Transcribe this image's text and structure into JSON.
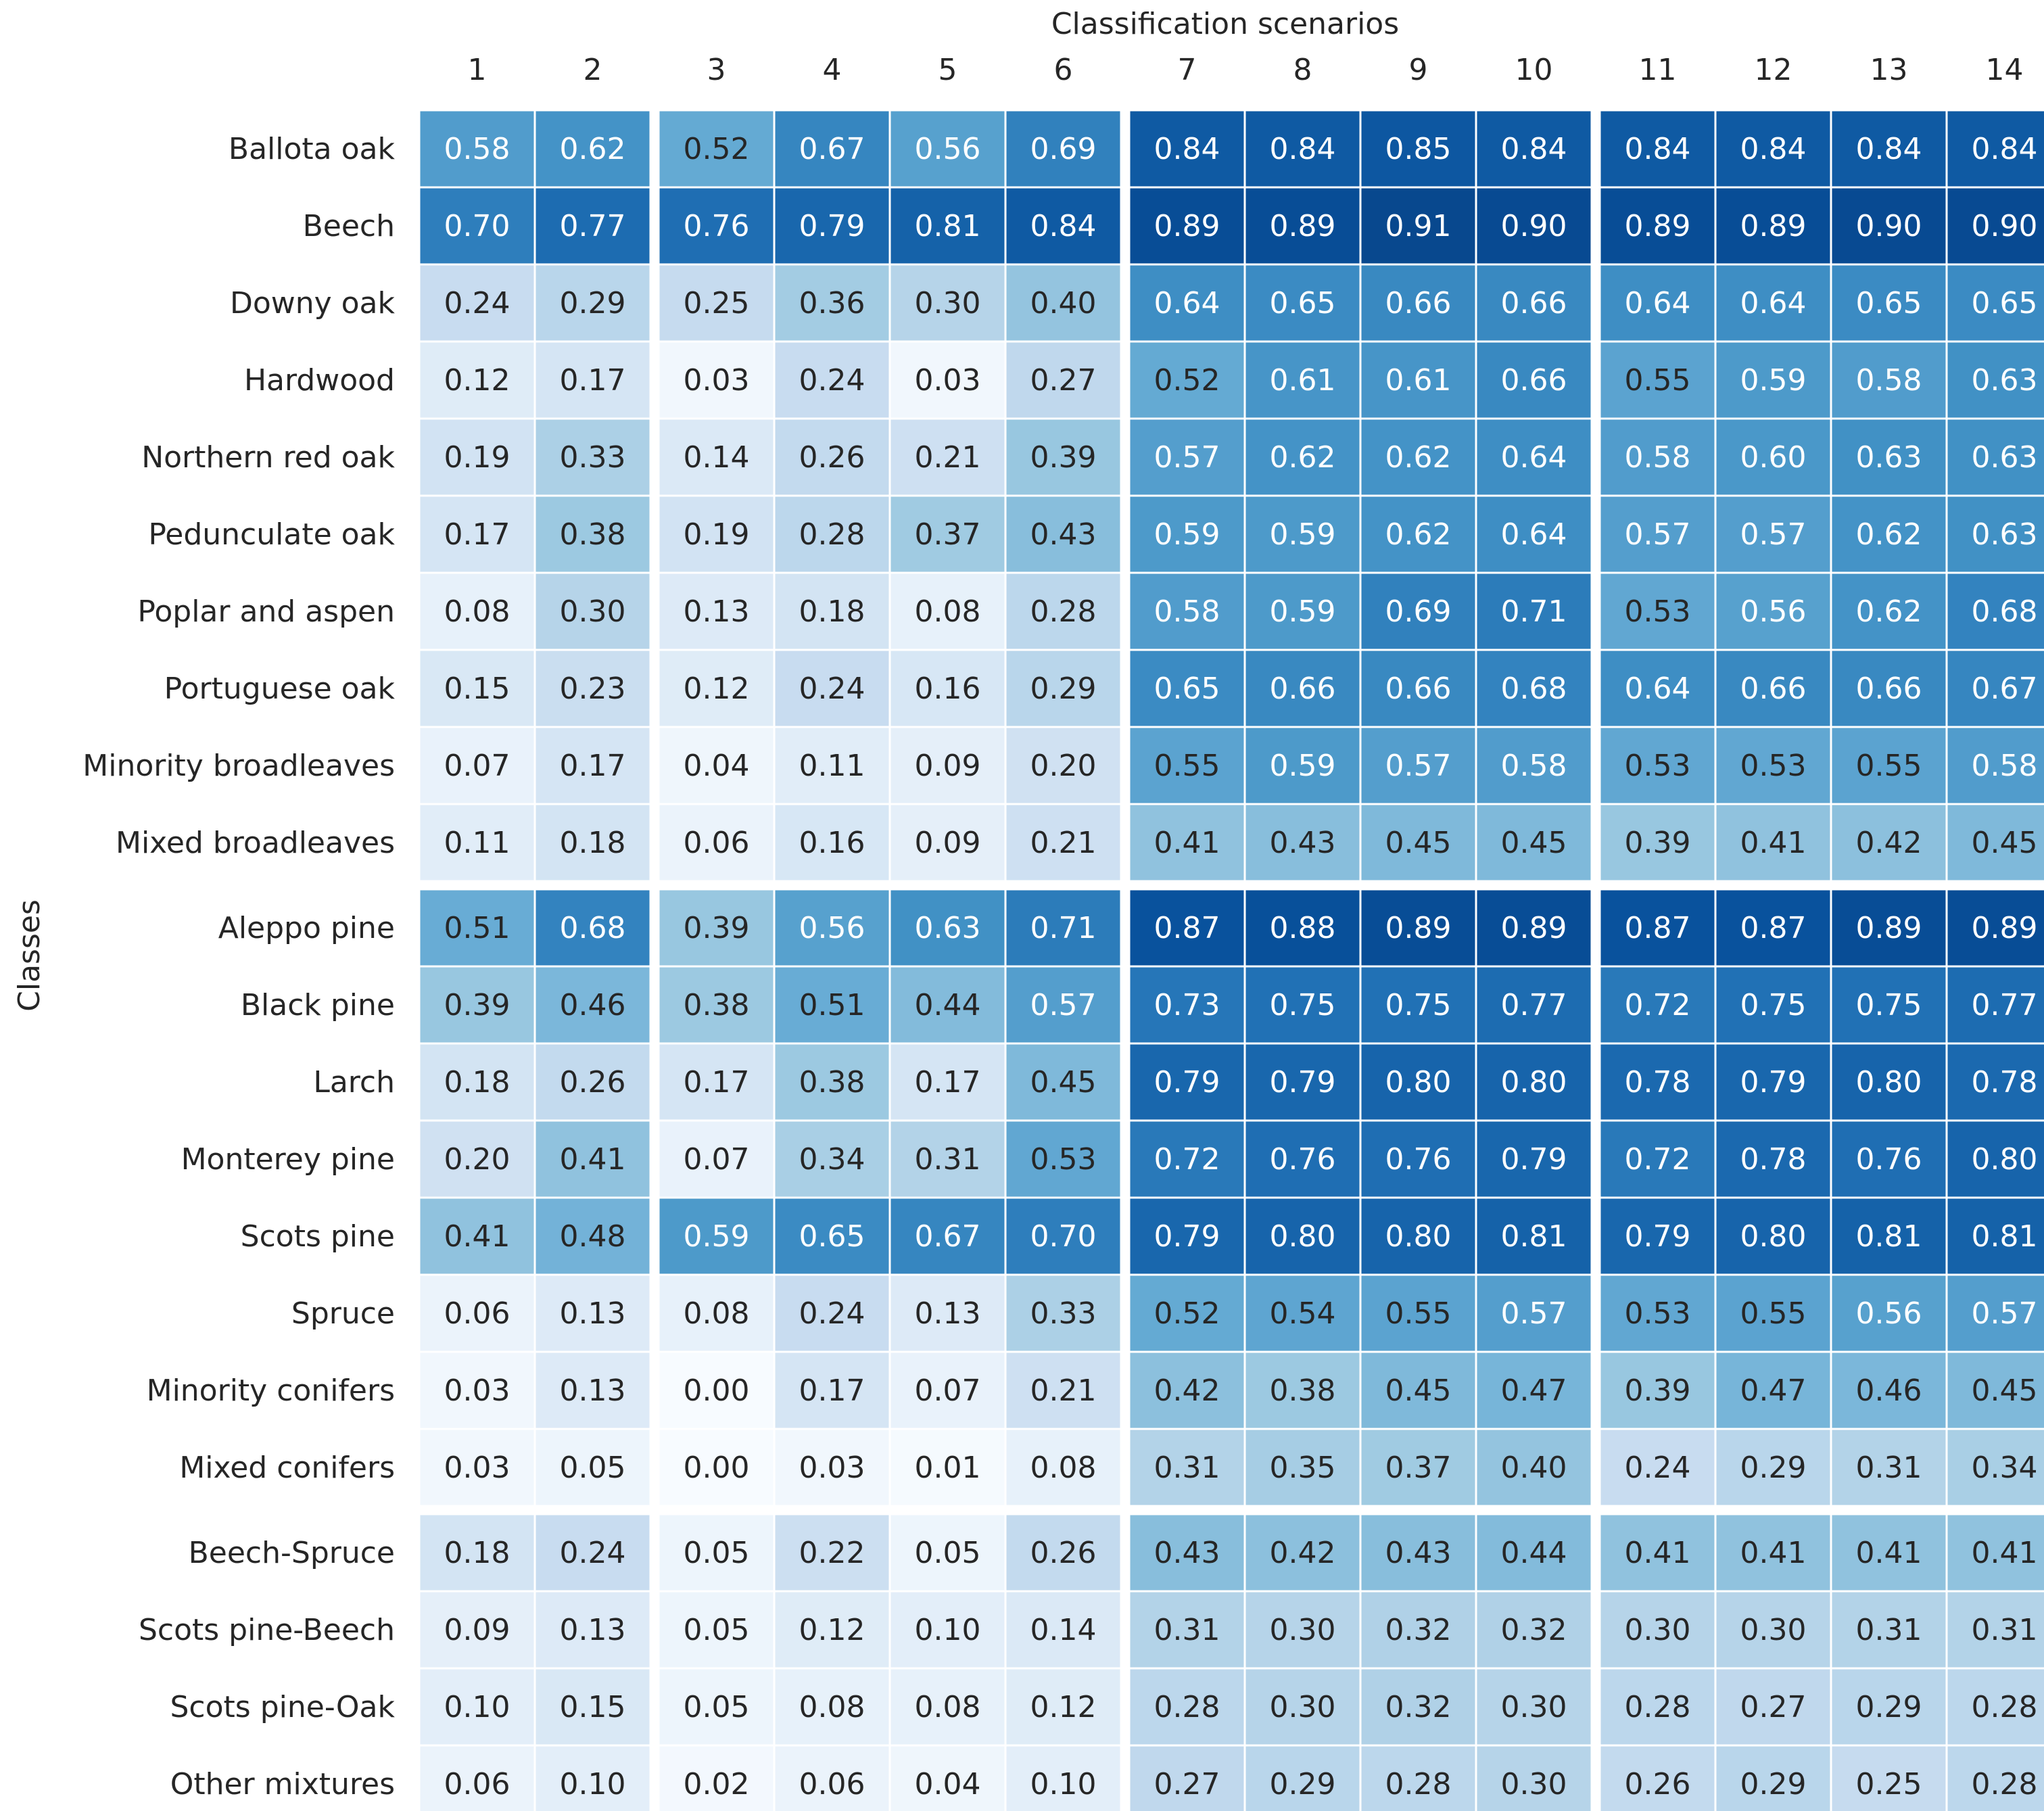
{
  "chart_data": {
    "type": "heatmap",
    "title": "Classification scenarios",
    "xlabel": "Classification scenarios",
    "ylabel": "Classes",
    "columns": [
      "1",
      "2",
      "3",
      "4",
      "5",
      "6",
      "7",
      "8",
      "9",
      "10",
      "11",
      "12",
      "13",
      "14"
    ],
    "rows": [
      "Ballota oak",
      "Beech",
      "Downy oak",
      "Hardwood",
      "Northern red oak",
      "Pedunculate oak",
      "Poplar and aspen",
      "Portuguese oak",
      "Minority broadleaves",
      "Mixed broadleaves",
      "Aleppo pine",
      "Black pine",
      "Larch",
      "Monterey pine",
      "Scots pine",
      "Spruce",
      "Minority conifers",
      "Mixed conifers",
      "Beech-Spruce",
      "Scots pine-Beech",
      "Scots pine-Oak",
      "Other mixtures"
    ],
    "column_groups": [
      [
        0,
        1
      ],
      [
        2,
        5
      ],
      [
        6,
        9
      ],
      [
        10,
        13
      ]
    ],
    "row_groups": [
      [
        0,
        9
      ],
      [
        10,
        17
      ],
      [
        18,
        21
      ]
    ],
    "values": [
      [
        "0.58",
        "0.62",
        "0.52",
        "0.67",
        "0.56",
        "0.69",
        "0.84",
        "0.84",
        "0.85",
        "0.84",
        "0.84",
        "0.84",
        "0.84",
        "0.84"
      ],
      [
        "0.70",
        "0.77",
        "0.76",
        "0.79",
        "0.81",
        "0.84",
        "0.89",
        "0.89",
        "0.91",
        "0.90",
        "0.89",
        "0.89",
        "0.90",
        "0.90"
      ],
      [
        "0.24",
        "0.29",
        "0.25",
        "0.36",
        "0.30",
        "0.40",
        "0.64",
        "0.65",
        "0.66",
        "0.66",
        "0.64",
        "0.64",
        "0.65",
        "0.65"
      ],
      [
        "0.12",
        "0.17",
        "0.03",
        "0.24",
        "0.03",
        "0.27",
        "0.52",
        "0.61",
        "0.61",
        "0.66",
        "0.55",
        "0.59",
        "0.58",
        "0.63"
      ],
      [
        "0.19",
        "0.33",
        "0.14",
        "0.26",
        "0.21",
        "0.39",
        "0.57",
        "0.62",
        "0.62",
        "0.64",
        "0.58",
        "0.60",
        "0.63",
        "0.63"
      ],
      [
        "0.17",
        "0.38",
        "0.19",
        "0.28",
        "0.37",
        "0.43",
        "0.59",
        "0.59",
        "0.62",
        "0.64",
        "0.57",
        "0.57",
        "0.62",
        "0.63"
      ],
      [
        "0.08",
        "0.30",
        "0.13",
        "0.18",
        "0.08",
        "0.28",
        "0.58",
        "0.59",
        "0.69",
        "0.71",
        "0.53",
        "0.56",
        "0.62",
        "0.68"
      ],
      [
        "0.15",
        "0.23",
        "0.12",
        "0.24",
        "0.16",
        "0.29",
        "0.65",
        "0.66",
        "0.66",
        "0.68",
        "0.64",
        "0.66",
        "0.66",
        "0.67"
      ],
      [
        "0.07",
        "0.17",
        "0.04",
        "0.11",
        "0.09",
        "0.20",
        "0.55",
        "0.59",
        "0.57",
        "0.58",
        "0.53",
        "0.53",
        "0.55",
        "0.58"
      ],
      [
        "0.11",
        "0.18",
        "0.06",
        "0.16",
        "0.09",
        "0.21",
        "0.41",
        "0.43",
        "0.45",
        "0.45",
        "0.39",
        "0.41",
        "0.42",
        "0.45"
      ],
      [
        "0.51",
        "0.68",
        "0.39",
        "0.56",
        "0.63",
        "0.71",
        "0.87",
        "0.88",
        "0.89",
        "0.89",
        "0.87",
        "0.87",
        "0.89",
        "0.89"
      ],
      [
        "0.39",
        "0.46",
        "0.38",
        "0.51",
        "0.44",
        "0.57",
        "0.73",
        "0.75",
        "0.75",
        "0.77",
        "0.72",
        "0.75",
        "0.75",
        "0.77"
      ],
      [
        "0.18",
        "0.26",
        "0.17",
        "0.38",
        "0.17",
        "0.45",
        "0.79",
        "0.79",
        "0.80",
        "0.80",
        "0.78",
        "0.79",
        "0.80",
        "0.78"
      ],
      [
        "0.20",
        "0.41",
        "0.07",
        "0.34",
        "0.31",
        "0.53",
        "0.72",
        "0.76",
        "0.76",
        "0.79",
        "0.72",
        "0.78",
        "0.76",
        "0.80"
      ],
      [
        "0.41",
        "0.48",
        "0.59",
        "0.65",
        "0.67",
        "0.70",
        "0.79",
        "0.80",
        "0.80",
        "0.81",
        "0.79",
        "0.80",
        "0.81",
        "0.81"
      ],
      [
        "0.06",
        "0.13",
        "0.08",
        "0.24",
        "0.13",
        "0.33",
        "0.52",
        "0.54",
        "0.55",
        "0.57",
        "0.53",
        "0.55",
        "0.56",
        "0.57"
      ],
      [
        "0.03",
        "0.13",
        "0.00",
        "0.17",
        "0.07",
        "0.21",
        "0.42",
        "0.38",
        "0.45",
        "0.47",
        "0.39",
        "0.47",
        "0.46",
        "0.45"
      ],
      [
        "0.03",
        "0.05",
        "0.00",
        "0.03",
        "0.01",
        "0.08",
        "0.31",
        "0.35",
        "0.37",
        "0.40",
        "0.24",
        "0.29",
        "0.31",
        "0.34"
      ],
      [
        "0.18",
        "0.24",
        "0.05",
        "0.22",
        "0.05",
        "0.26",
        "0.43",
        "0.42",
        "0.43",
        "0.44",
        "0.41",
        "0.41",
        "0.41",
        "0.41"
      ],
      [
        "0.09",
        "0.13",
        "0.05",
        "0.12",
        "0.10",
        "0.14",
        "0.31",
        "0.30",
        "0.32",
        "0.32",
        "0.30",
        "0.30",
        "0.31",
        "0.31"
      ],
      [
        "0.10",
        "0.15",
        "0.05",
        "0.08",
        "0.08",
        "0.12",
        "0.28",
        "0.30",
        "0.32",
        "0.30",
        "0.28",
        "0.27",
        "0.29",
        "0.28"
      ],
      [
        "0.06",
        "0.10",
        "0.02",
        "0.06",
        "0.04",
        "0.10",
        "0.27",
        "0.29",
        "0.28",
        "0.30",
        "0.26",
        "0.29",
        "0.25",
        "0.28"
      ]
    ],
    "color_scale": {
      "name": "Blues",
      "vmin": 0.0,
      "vmax": 1.0
    },
    "colorbar": false
  }
}
